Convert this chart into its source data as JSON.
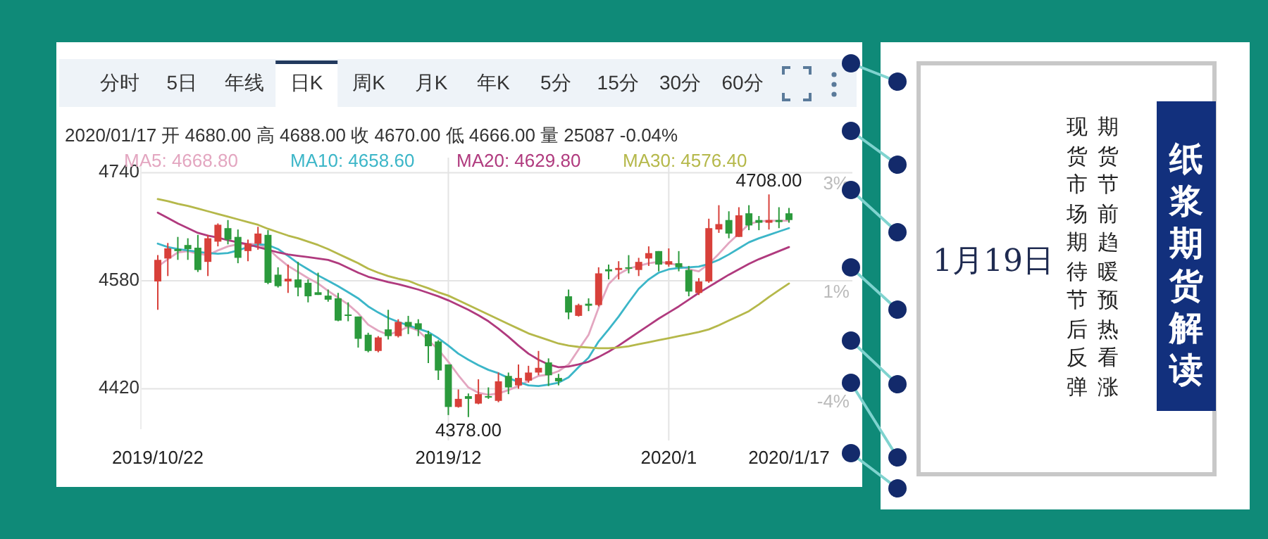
{
  "chart_data": {
    "type": "candlestick",
    "title": "纸浆期货解读",
    "subtitle": "1月19日",
    "categories": [
      "2019/10/22",
      null,
      null,
      null,
      null,
      null,
      null,
      null,
      null,
      null,
      null,
      null,
      null,
      null,
      null,
      null,
      null,
      null,
      null,
      null,
      null,
      null,
      null,
      null,
      null,
      null,
      null,
      null,
      null,
      "2019/12",
      null,
      null,
      null,
      null,
      null,
      null,
      null,
      null,
      null,
      null,
      null,
      null,
      null,
      null,
      null,
      null,
      null,
      null,
      null,
      null,
      null,
      "2020/1",
      null,
      null,
      null,
      null,
      null,
      null,
      null,
      null,
      null,
      null,
      null,
      "2020/1/17"
    ],
    "ohlc": [
      [
        4579,
        4618,
        4537,
        4611
      ],
      [
        4613,
        4636,
        4587,
        4628
      ],
      [
        4627,
        4645,
        4611,
        4624
      ],
      [
        4633,
        4643,
        4611,
        4627
      ],
      [
        4629,
        4648,
        4593,
        4596
      ],
      [
        4608,
        4648,
        4587,
        4643
      ],
      [
        4638,
        4665,
        4631,
        4663
      ],
      [
        4658,
        4670,
        4634,
        4641
      ],
      [
        4645,
        4656,
        4606,
        4614
      ],
      [
        4624,
        4641,
        4609,
        4635
      ],
      [
        4635,
        4660,
        4626,
        4650
      ],
      [
        4648,
        4655,
        4575,
        4577
      ],
      [
        4589,
        4600,
        4570,
        4572
      ],
      [
        4579,
        4604,
        4562,
        4583
      ],
      [
        4582,
        4608,
        4557,
        4570
      ],
      [
        4577,
        4582,
        4548,
        4557
      ],
      [
        4563,
        4592,
        4559,
        4559
      ],
      [
        4558,
        4567,
        4549,
        4552
      ],
      [
        4554,
        4562,
        4520,
        4521
      ],
      [
        4530,
        4548,
        4520,
        4528
      ],
      [
        4527,
        4527,
        4481,
        4494
      ],
      [
        4500,
        4503,
        4474,
        4476
      ],
      [
        4476,
        4498,
        4474,
        4496
      ],
      [
        4508,
        4537,
        4493,
        4498
      ],
      [
        4498,
        4523,
        4496,
        4519
      ],
      [
        4519,
        4528,
        4501,
        4512
      ],
      [
        4517,
        4523,
        4498,
        4508
      ],
      [
        4501,
        4506,
        4458,
        4483
      ],
      [
        4490,
        4492,
        4433,
        4447
      ],
      [
        4456,
        4456,
        4381,
        4393
      ],
      [
        4393,
        4419,
        4392,
        4405
      ],
      [
        4409,
        4413,
        4378,
        4405
      ],
      [
        4398,
        4434,
        4397,
        4412
      ],
      [
        4409,
        4422,
        4405,
        4407
      ],
      [
        4402,
        4444,
        4400,
        4431
      ],
      [
        4439,
        4444,
        4412,
        4422
      ],
      [
        4425,
        4456,
        4420,
        4436
      ],
      [
        4432,
        4454,
        4429,
        4444
      ],
      [
        4444,
        4476,
        4440,
        4451
      ],
      [
        4459,
        4465,
        4424,
        4440
      ],
      [
        4436,
        4442,
        4425,
        4431
      ],
      [
        4557,
        4567,
        4523,
        4533
      ],
      [
        4528,
        4546,
        4527,
        4544
      ],
      [
        4546,
        4554,
        4535,
        4543
      ],
      [
        4544,
        4600,
        4542,
        4591
      ],
      [
        4597,
        4604,
        4582,
        4594
      ],
      [
        4596,
        4609,
        4582,
        4599
      ],
      [
        4600,
        4618,
        4591,
        4599
      ],
      [
        4596,
        4614,
        4587,
        4608
      ],
      [
        4613,
        4631,
        4602,
        4621
      ],
      [
        4624,
        4624,
        4594,
        4604
      ],
      [
        4604,
        4628,
        4601,
        4609
      ],
      [
        4606,
        4624,
        4594,
        4600
      ],
      [
        4596,
        4602,
        4557,
        4564
      ],
      [
        4562,
        4584,
        4559,
        4579
      ],
      [
        4579,
        4672,
        4577,
        4658
      ],
      [
        4656,
        4692,
        4651,
        4664
      ],
      [
        4670,
        4683,
        4643,
        4650
      ],
      [
        4645,
        4689,
        4645,
        4677
      ],
      [
        4680,
        4692,
        4655,
        4662
      ],
      [
        4670,
        4676,
        4655,
        4666
      ],
      [
        4666,
        4708,
        4656,
        4670
      ],
      [
        4670,
        4689,
        4658,
        4667
      ],
      [
        4680,
        4688,
        4666,
        4670
      ]
    ],
    "series": [
      {
        "name": "MA5: 4668.80",
        "type": "line",
        "color": "#e3a6c0",
        "values": [
          4601,
          4612,
          4622,
          4624,
          4620,
          4618,
          4625,
          4631,
          4634,
          4635,
          4634,
          4628,
          4614,
          4602,
          4593,
          4584,
          4576,
          4565,
          4555,
          4545,
          4532,
          4515,
          4506,
          4500,
          4505,
          4512,
          4506,
          4492,
          4478,
          4460,
          4440,
          4422,
          4414,
          4411,
          4413,
          4418,
          4424,
          4432,
          4439,
          4441,
          4446,
          4456,
          4478,
          4500,
          4540,
          4575,
          4590,
          4598,
          4602,
          4606,
          4608,
          4606,
          4603,
          4597,
          4594,
          4605,
          4620,
          4636,
          4650,
          4664,
          4668,
          4669,
          4669,
          4669
        ]
      },
      {
        "name": "MA10: 4658.60",
        "type": "line",
        "color": "#3cb6c8",
        "values": [
          4635,
          4630,
          4627,
          4625,
          4623,
          4621,
          4620,
          4621,
          4625,
          4630,
          4634,
          4633,
          4627,
          4617,
          4606,
          4597,
          4588,
          4580,
          4572,
          4563,
          4554,
          4542,
          4533,
          4525,
          4519,
          4514,
          4509,
          4504,
          4495,
          4484,
          4472,
          4463,
          4455,
          4448,
          4443,
          4436,
          4430,
          4425,
          4424,
          4426,
          4429,
          4437,
          4452,
          4466,
          4490,
          4508,
          4527,
          4548,
          4568,
          4582,
          4592,
          4597,
          4599,
          4600,
          4601,
          4605,
          4611,
          4619,
          4628,
          4637,
          4643,
          4648,
          4653,
          4658
        ]
      },
      {
        "name": "MA20: 4629.80",
        "type": "line",
        "color": "#b03a7e",
        "values": [
          4681,
          4673,
          4665,
          4658,
          4651,
          4647,
          4644,
          4640,
          4637,
          4634,
          4630,
          4626,
          4622,
          4619,
          4617,
          4615,
          4613,
          4611,
          4606,
          4599,
          4592,
          4586,
          4582,
          4578,
          4575,
          4571,
          4567,
          4562,
          4557,
          4551,
          4544,
          4537,
          4529,
          4520,
          4509,
          4497,
          4484,
          4472,
          4463,
          4456,
          4452,
          4453,
          4456,
          4460,
          4467,
          4475,
          4484,
          4494,
          4504,
          4514,
          4524,
          4533,
          4542,
          4552,
          4562,
          4571,
          4580,
          4589,
          4597,
          4605,
          4612,
          4618,
          4624,
          4630
        ]
      },
      {
        "name": "MA30: 4576.40",
        "type": "line",
        "color": "#b5b84a",
        "values": [
          4701,
          4698,
          4694,
          4691,
          4687,
          4683,
          4679,
          4675,
          4671,
          4667,
          4663,
          4657,
          4652,
          4647,
          4643,
          4638,
          4633,
          4627,
          4620,
          4613,
          4606,
          4598,
          4592,
          4587,
          4583,
          4580,
          4574,
          4569,
          4563,
          4558,
          4551,
          4544,
          4537,
          4530,
          4523,
          4516,
          4509,
          4502,
          4497,
          4492,
          4487,
          4484,
          4482,
          4481,
          4480,
          4480,
          4481,
          4483,
          4486,
          4489,
          4492,
          4495,
          4498,
          4501,
          4504,
          4508,
          4514,
          4521,
          4528,
          4535,
          4545,
          4556,
          4566,
          4576
        ]
      }
    ],
    "ylim": [
      4360,
      4750
    ],
    "yticks": [
      4420,
      4580,
      4740
    ],
    "grid": true,
    "legend": "top",
    "annotations": [
      "分时",
      "5日",
      "年线",
      "日K",
      "周K",
      "月K",
      "年K",
      "5分",
      "15分",
      "30分",
      "60分",
      "2020/01/17 开 4680.00 高 4688.00 收 4670.00 低 4666.00 量 25087 -0.04%",
      "3%",
      "1%",
      "-4%",
      "期货节前趋暖预热看涨",
      "现货市场期待节后反弹",
      "4708.00",
      "4378.00"
    ]
  }
}
